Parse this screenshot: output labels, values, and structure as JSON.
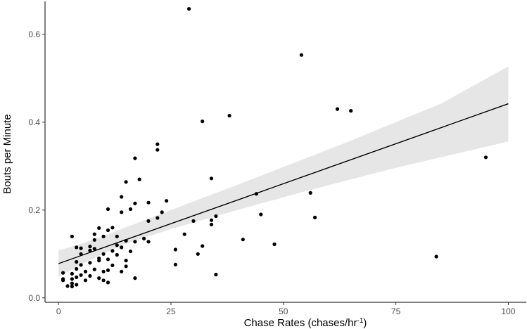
{
  "chart_data": {
    "type": "scatter",
    "xlabel_main": "Chase Rates (chases/hr",
    "xlabel_sup": "-1",
    "xlabel_end": ")",
    "ylabel": "Bouts per Minute",
    "xlim": [
      -3,
      104
    ],
    "ylim": [
      -0.01,
      0.675
    ],
    "x_ticks": [
      0,
      25,
      50,
      75,
      100
    ],
    "y_ticks": [
      0.0,
      0.2,
      0.4,
      0.6
    ],
    "grid": false,
    "colors": {
      "points": "#000000",
      "line": "#000000",
      "ribbon": "#e6e6e6",
      "axis": "#000000"
    },
    "regression": {
      "x": [
        0,
        100
      ],
      "y": [
        0.078,
        0.442
      ],
      "ci_x": [
        0,
        5,
        10,
        15,
        25,
        35,
        45,
        55,
        65,
        75,
        85,
        100
      ],
      "ci_lower": [
        0.048,
        0.076,
        0.101,
        0.123,
        0.157,
        0.186,
        0.215,
        0.243,
        0.27,
        0.296,
        0.32,
        0.356
      ],
      "ci_upper": [
        0.108,
        0.123,
        0.141,
        0.161,
        0.2,
        0.239,
        0.278,
        0.318,
        0.358,
        0.4,
        0.442,
        0.527
      ]
    },
    "points": [
      [
        29,
        0.658
      ],
      [
        54,
        0.553
      ],
      [
        62,
        0.43
      ],
      [
        65,
        0.426
      ],
      [
        38,
        0.415
      ],
      [
        32,
        0.402
      ],
      [
        95,
        0.32
      ],
      [
        22,
        0.35
      ],
      [
        22,
        0.337
      ],
      [
        17,
        0.318
      ],
      [
        34,
        0.272
      ],
      [
        18,
        0.27
      ],
      [
        15,
        0.264
      ],
      [
        44,
        0.237
      ],
      [
        56,
        0.239
      ],
      [
        14,
        0.23
      ],
      [
        24,
        0.221
      ],
      [
        17,
        0.215
      ],
      [
        20,
        0.217
      ],
      [
        16,
        0.202
      ],
      [
        11,
        0.202
      ],
      [
        14,
        0.195
      ],
      [
        23,
        0.195
      ],
      [
        45,
        0.19
      ],
      [
        35,
        0.186
      ],
      [
        57,
        0.183
      ],
      [
        22,
        0.182
      ],
      [
        34,
        0.177
      ],
      [
        20,
        0.175
      ],
      [
        30,
        0.175
      ],
      [
        34,
        0.167
      ],
      [
        9,
        0.159
      ],
      [
        12,
        0.16
      ],
      [
        11,
        0.154
      ],
      [
        8,
        0.145
      ],
      [
        28,
        0.145
      ],
      [
        3,
        0.14
      ],
      [
        10,
        0.14
      ],
      [
        13,
        0.14
      ],
      [
        19,
        0.135
      ],
      [
        41,
        0.133
      ],
      [
        8,
        0.132
      ],
      [
        15,
        0.13
      ],
      [
        17,
        0.128
      ],
      [
        20,
        0.128
      ],
      [
        48,
        0.122
      ],
      [
        13,
        0.12
      ],
      [
        32,
        0.118
      ],
      [
        7,
        0.117
      ],
      [
        4,
        0.115
      ],
      [
        14,
        0.115
      ],
      [
        5,
        0.113
      ],
      [
        8,
        0.112
      ],
      [
        26,
        0.11
      ],
      [
        7,
        0.108
      ],
      [
        12,
        0.107
      ],
      [
        16,
        0.106
      ],
      [
        31,
        0.1
      ],
      [
        5,
        0.1
      ],
      [
        10,
        0.1
      ],
      [
        13,
        0.098
      ],
      [
        84,
        0.094
      ],
      [
        9,
        0.09
      ],
      [
        11,
        0.088
      ],
      [
        9,
        0.085
      ],
      [
        15,
        0.085
      ],
      [
        4,
        0.082
      ],
      [
        7,
        0.08
      ],
      [
        26,
        0.076
      ],
      [
        5,
        0.075
      ],
      [
        12,
        0.074
      ],
      [
        15,
        0.072
      ],
      [
        4,
        0.066
      ],
      [
        8,
        0.065
      ],
      [
        11,
        0.063
      ],
      [
        6,
        0.06
      ],
      [
        10,
        0.06
      ],
      [
        14,
        0.06
      ],
      [
        1,
        0.057
      ],
      [
        3,
        0.055
      ],
      [
        5,
        0.052
      ],
      [
        35,
        0.053
      ],
      [
        7,
        0.05
      ],
      [
        4,
        0.047
      ],
      [
        9,
        0.045
      ],
      [
        17,
        0.045
      ],
      [
        1,
        0.043
      ],
      [
        3,
        0.043
      ],
      [
        6,
        0.04
      ],
      [
        10,
        0.04
      ],
      [
        1,
        0.04
      ],
      [
        11,
        0.035
      ],
      [
        3,
        0.033
      ],
      [
        4,
        0.03
      ],
      [
        2,
        0.027
      ],
      [
        3,
        0.026
      ]
    ]
  }
}
